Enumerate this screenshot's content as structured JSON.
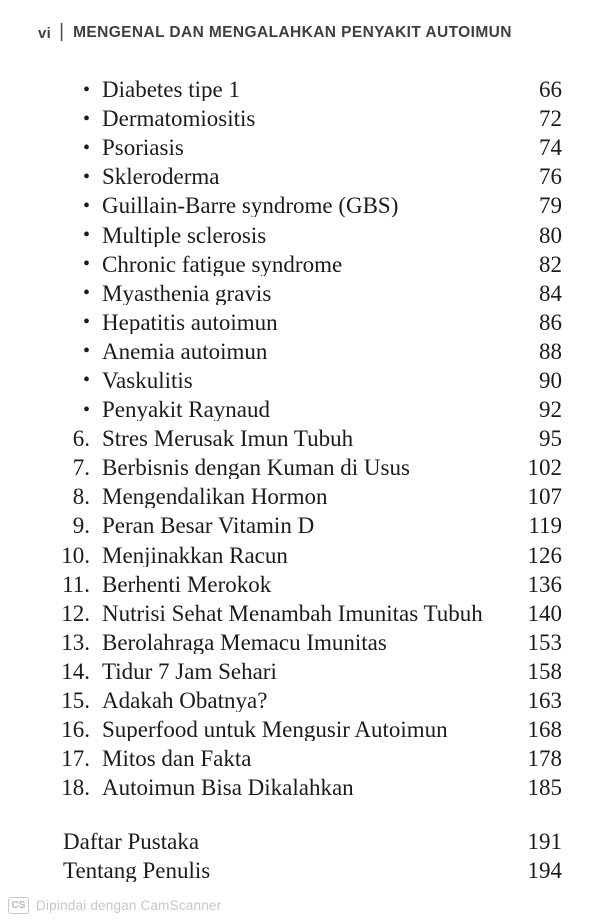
{
  "header": {
    "page_label": "vi",
    "separator": "|",
    "book_title": "MENGENAL DAN MENGALAHKAN PENYAKIT AUTOIMUN"
  },
  "toc": {
    "bullet_items": [
      {
        "marker": "•",
        "label": "Diabetes tipe 1",
        "page": "66"
      },
      {
        "marker": "•",
        "label": "Dermatomiositis",
        "page": "72"
      },
      {
        "marker": "•",
        "label": "Psoriasis",
        "page": "74"
      },
      {
        "marker": "•",
        "label": "Skleroderma",
        "page": "76"
      },
      {
        "marker": "•",
        "label": "Guillain-Barre syndrome (GBS)",
        "page": "79"
      },
      {
        "marker": "•",
        "label": "Multiple sclerosis",
        "page": "80"
      },
      {
        "marker": "•",
        "label": "Chronic fatigue syndrome",
        "page": "82"
      },
      {
        "marker": "•",
        "label": "Myasthenia gravis",
        "page": "84"
      },
      {
        "marker": "•",
        "label": "Hepatitis autoimun",
        "page": "86"
      },
      {
        "marker": "•",
        "label": "Anemia autoimun",
        "page": "88"
      },
      {
        "marker": "•",
        "label": "Vaskulitis",
        "page": "90"
      },
      {
        "marker": "•",
        "label": "Penyakit Raynaud",
        "page": "92"
      }
    ],
    "numbered_items": [
      {
        "marker": "6.",
        "label": "Stres Merusak Imun Tubuh",
        "page": "95"
      },
      {
        "marker": "7.",
        "label": "Berbisnis dengan Kuman di Usus",
        "page": "102"
      },
      {
        "marker": "8.",
        "label": "Mengendalikan Hormon",
        "page": "107"
      },
      {
        "marker": "9.",
        "label": "Peran Besar Vitamin D",
        "page": "119"
      },
      {
        "marker": "10.",
        "label": "Menjinakkan Racun",
        "page": "126"
      },
      {
        "marker": "11.",
        "label": "Berhenti Merokok",
        "page": "136"
      },
      {
        "marker": "12.",
        "label": "Nutrisi Sehat Menambah Imunitas Tubuh",
        "page": "140"
      },
      {
        "marker": "13.",
        "label": "Berolahraga Memacu Imunitas",
        "page": "153"
      },
      {
        "marker": "14.",
        "label": "Tidur 7 Jam Sehari",
        "page": "158"
      },
      {
        "marker": "15.",
        "label": "Adakah Obatnya?",
        "page": "163"
      },
      {
        "marker": "16.",
        "label": "Superfood untuk Mengusir Autoimun",
        "page": "168"
      },
      {
        "marker": "17.",
        "label": "Mitos dan Fakta",
        "page": "178"
      },
      {
        "marker": "18.",
        "label": "Autoimun Bisa Dikalahkan",
        "page": "185"
      }
    ],
    "back_matter": [
      {
        "marker": "",
        "label": "Daftar Pustaka",
        "page": "191"
      },
      {
        "marker": "",
        "label": "Tentang Penulis",
        "page": "194"
      }
    ]
  },
  "footer": {
    "badge_label": "CS",
    "watermark_text": "Dipindai dengan CamScanner"
  },
  "colors": {
    "ink": "#1b1b1b",
    "header_text": "#3f3f3f",
    "watermark_gray": "#c7c7c7",
    "background": "#ffffff"
  }
}
